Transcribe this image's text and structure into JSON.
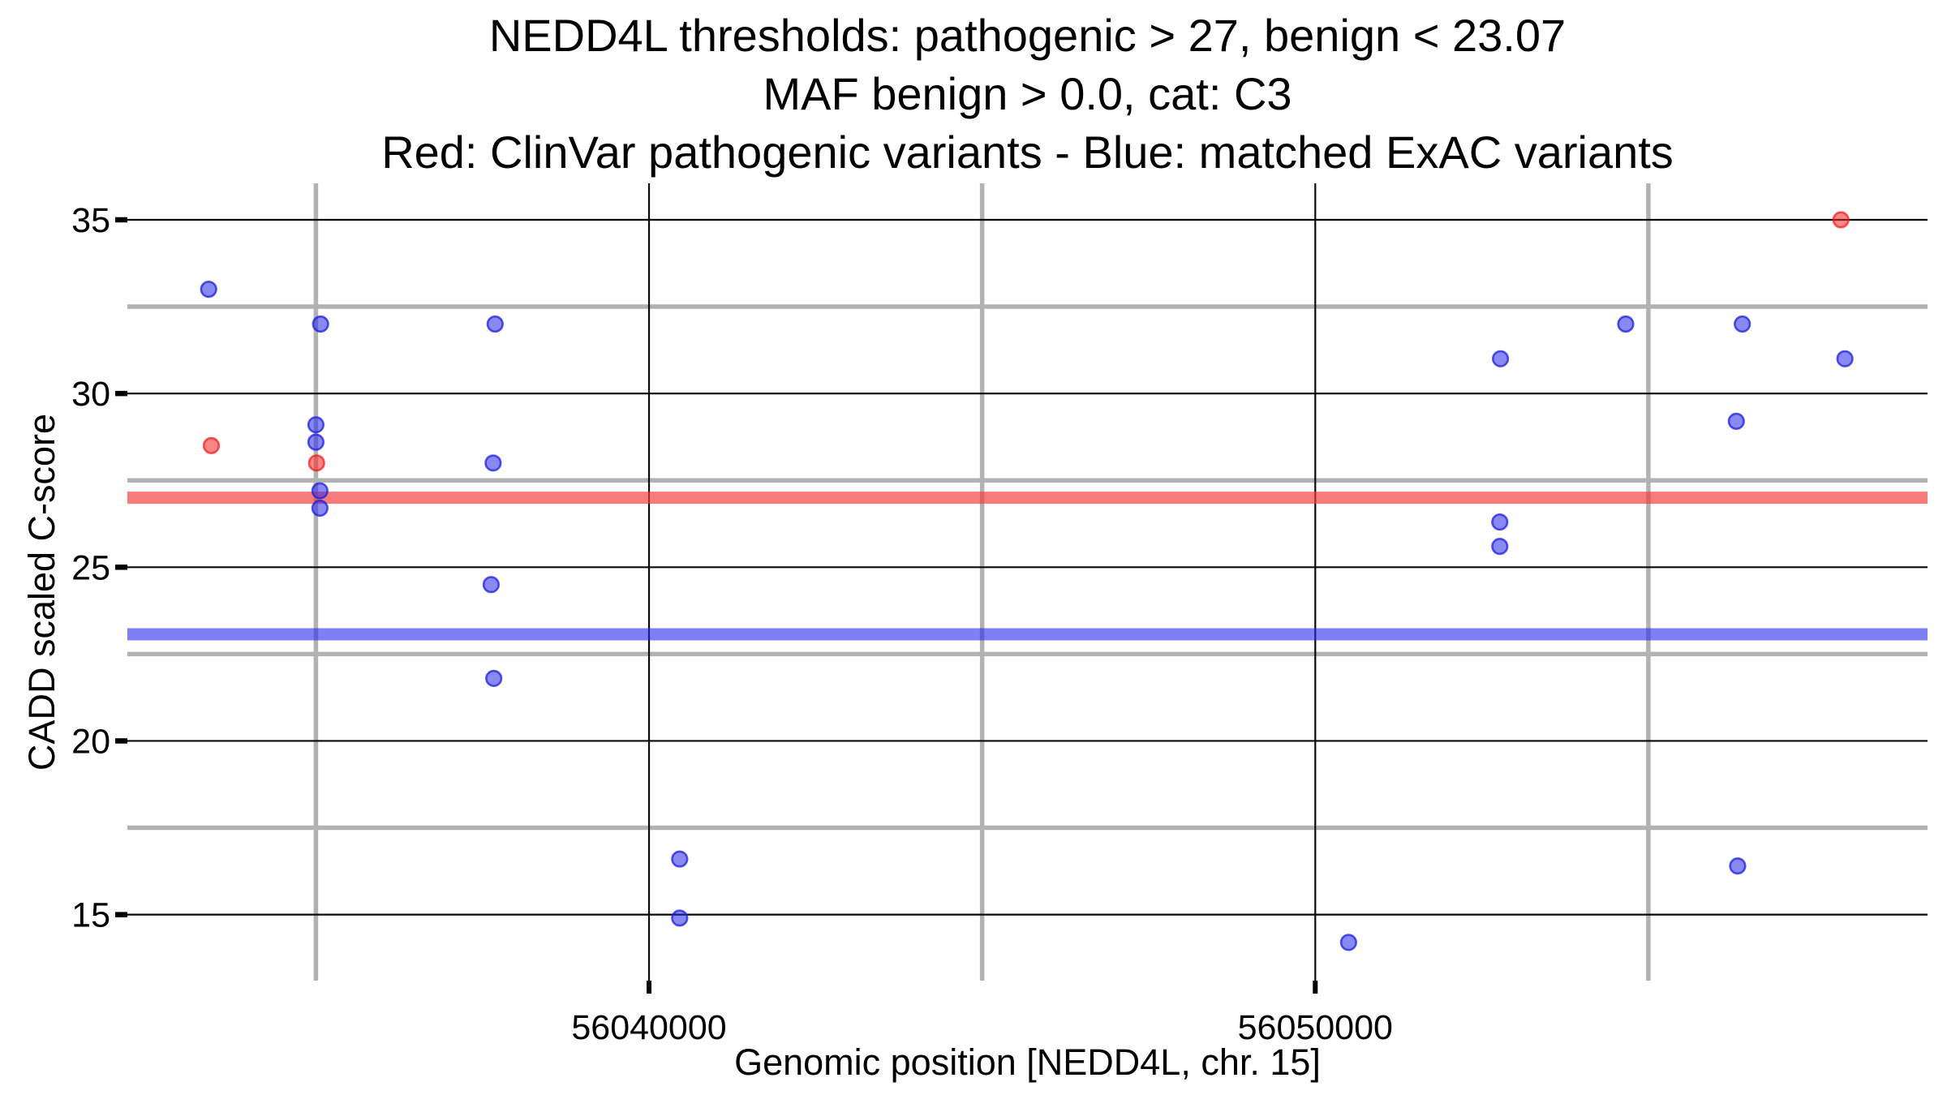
{
  "chart_data": {
    "type": "scatter",
    "title_lines": [
      "NEDD4L thresholds: pathogenic > 27, benign < 23.07",
      "MAF benign > 0.0, cat: C3",
      "Red: ClinVar pathogenic variants - Blue: matched ExAC variants"
    ],
    "xlabel": "Genomic position [NEDD4L, chr. 15]",
    "ylabel": "CADD scaled C-score",
    "x_domain": [
      56032170,
      56059190
    ],
    "y_domain": [
      13.1,
      36.05
    ],
    "x_major_ticks": [
      {
        "value": 56040000,
        "label": "56040000"
      },
      {
        "value": 56050000,
        "label": "56050000"
      }
    ],
    "y_major_ticks": [
      {
        "value": 15,
        "label": "15"
      },
      {
        "value": 20,
        "label": "20"
      },
      {
        "value": 25,
        "label": "25"
      },
      {
        "value": 30,
        "label": "30"
      },
      {
        "value": 35,
        "label": "35"
      }
    ],
    "x_minor_gridlines": [
      56035000,
      56045000,
      56055000
    ],
    "y_minor_gridlines": [
      17.5,
      22.5,
      27.5,
      32.5
    ],
    "grid": "major-black-minor-gray",
    "legend_position": "none",
    "thresholds": [
      {
        "name": "pathogenic-threshold",
        "value": 27.0,
        "color": "rgba(245,60,60,0.68)"
      },
      {
        "name": "benign-threshold",
        "value": 23.07,
        "color": "rgba(40,40,238,0.6)"
      }
    ],
    "series": [
      {
        "name": "ClinVar pathogenic variants",
        "color": "#fb4040",
        "fill": "rgba(248,35,35,0.55)",
        "stroke": "rgba(247,20,20,0.7)",
        "points": [
          [
            56033430,
            28.5
          ],
          [
            56035010,
            28.0
          ],
          [
            56057890,
            35.0
          ]
        ]
      },
      {
        "name": "matched ExAC variants",
        "color": "#4040fb",
        "fill": "rgba(40,40,235,0.55)",
        "stroke": "rgba(30,30,225,0.75)",
        "points": [
          [
            56033390,
            33.0
          ],
          [
            56035070,
            32.0
          ],
          [
            56035000,
            29.1
          ],
          [
            56035000,
            28.6
          ],
          [
            56035060,
            27.2
          ],
          [
            56035060,
            26.7
          ],
          [
            56037690,
            32.0
          ],
          [
            56037660,
            28.0
          ],
          [
            56037630,
            24.5
          ],
          [
            56037670,
            21.8
          ],
          [
            56040460,
            16.6
          ],
          [
            56040460,
            14.9
          ],
          [
            56050500,
            14.2
          ],
          [
            56052780,
            31.0
          ],
          [
            56052770,
            26.3
          ],
          [
            56052770,
            25.6
          ],
          [
            56054660,
            32.0
          ],
          [
            56056410,
            32.0
          ],
          [
            56056320,
            29.2
          ],
          [
            56056340,
            16.4
          ],
          [
            56057950,
            31.0
          ]
        ]
      }
    ],
    "colors": {
      "background": "#ffffff",
      "major_grid": "#0a0a0a",
      "minor_grid": "#b2b2b2",
      "tick": "#000000",
      "text": "#000000"
    }
  }
}
